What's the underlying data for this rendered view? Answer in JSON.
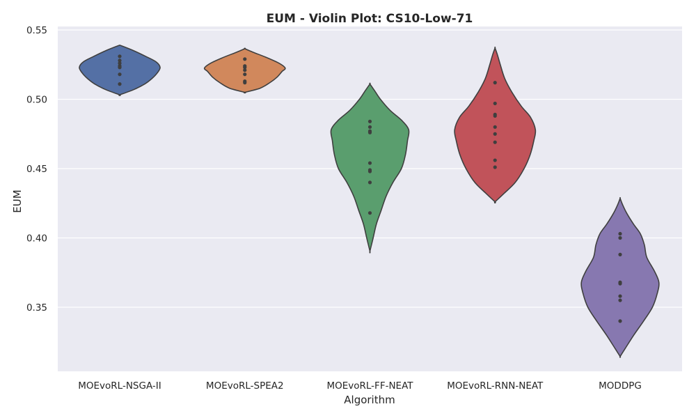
{
  "chart_data": {
    "type": "violin",
    "title": "EUM - Violin Plot: CS10-Low-71",
    "xlabel": "Algorithm",
    "ylabel": "EUM",
    "ylim": [
      0.305,
      0.55
    ],
    "yticks": [
      "0.35",
      "0.40",
      "0.45",
      "0.50",
      "0.55"
    ],
    "grid": true,
    "categories": [
      "MOEvoRL-NSGA-II",
      "MOEvoRL-SPEA2",
      "MOEvoRL-FF-NEAT",
      "MOEvoRL-RNN-NEAT",
      "MODDPG"
    ],
    "series": [
      {
        "category": "MOEvoRL-NSGA-II",
        "color": "#5470a5",
        "points": [
          0.531,
          0.528,
          0.526,
          0.524,
          0.523,
          0.518,
          0.511
        ],
        "density": [
          [
            0.5032,
            0.0
          ],
          [
            0.507,
            0.35
          ],
          [
            0.511,
            0.62
          ],
          [
            0.515,
            0.8
          ],
          [
            0.519,
            0.93
          ],
          [
            0.523,
            1.0
          ],
          [
            0.527,
            0.9
          ],
          [
            0.531,
            0.64
          ],
          [
            0.535,
            0.35
          ],
          [
            0.5385,
            0.05
          ],
          [
            0.539,
            0.0
          ]
        ]
      },
      {
        "category": "MOEvoRL-SPEA2",
        "color": "#d1885c",
        "points": [
          0.529,
          0.524,
          0.523,
          0.521,
          0.518,
          0.513,
          0.512
        ],
        "density": [
          [
            0.505,
            0.0
          ],
          [
            0.508,
            0.38
          ],
          [
            0.512,
            0.62
          ],
          [
            0.516,
            0.8
          ],
          [
            0.52,
            0.92
          ],
          [
            0.5225,
            1.0
          ],
          [
            0.526,
            0.85
          ],
          [
            0.53,
            0.55
          ],
          [
            0.534,
            0.2
          ],
          [
            0.5365,
            0.0
          ]
        ]
      },
      {
        "category": "MOEvoRL-FF-NEAT",
        "color": "#5a9e6e",
        "points": [
          0.484,
          0.48,
          0.477,
          0.476,
          0.454,
          0.449,
          0.448,
          0.44,
          0.418
        ],
        "density": [
          [
            0.3905,
            0.0
          ],
          [
            0.4,
            0.08
          ],
          [
            0.41,
            0.16
          ],
          [
            0.42,
            0.28
          ],
          [
            0.43,
            0.4
          ],
          [
            0.44,
            0.57
          ],
          [
            0.45,
            0.78
          ],
          [
            0.46,
            0.88
          ],
          [
            0.47,
            0.93
          ],
          [
            0.478,
            0.96
          ],
          [
            0.485,
            0.78
          ],
          [
            0.492,
            0.5
          ],
          [
            0.5,
            0.26
          ],
          [
            0.506,
            0.12
          ],
          [
            0.511,
            0.0
          ]
        ]
      },
      {
        "category": "MOEvoRL-RNN-NEAT",
        "color": "#c1535a",
        "points": [
          0.512,
          0.497,
          0.489,
          0.488,
          0.48,
          0.475,
          0.469,
          0.456,
          0.451
        ],
        "density": [
          [
            0.426,
            0.0
          ],
          [
            0.432,
            0.22
          ],
          [
            0.44,
            0.5
          ],
          [
            0.45,
            0.72
          ],
          [
            0.46,
            0.87
          ],
          [
            0.47,
            0.96
          ],
          [
            0.478,
            1.0
          ],
          [
            0.487,
            0.88
          ],
          [
            0.495,
            0.65
          ],
          [
            0.505,
            0.42
          ],
          [
            0.515,
            0.24
          ],
          [
            0.525,
            0.13
          ],
          [
            0.532,
            0.06
          ],
          [
            0.537,
            0.0
          ]
        ]
      },
      {
        "category": "MODDPG",
        "color": "#8778b0",
        "points": [
          0.403,
          0.4,
          0.388,
          0.368,
          0.367,
          0.358,
          0.355,
          0.34
        ],
        "density": [
          [
            0.3145,
            0.0
          ],
          [
            0.32,
            0.12
          ],
          [
            0.33,
            0.34
          ],
          [
            0.34,
            0.58
          ],
          [
            0.35,
            0.8
          ],
          [
            0.36,
            0.92
          ],
          [
            0.368,
            0.96
          ],
          [
            0.376,
            0.85
          ],
          [
            0.386,
            0.66
          ],
          [
            0.395,
            0.6
          ],
          [
            0.403,
            0.5
          ],
          [
            0.41,
            0.33
          ],
          [
            0.418,
            0.16
          ],
          [
            0.424,
            0.06
          ],
          [
            0.4285,
            0.0
          ]
        ]
      }
    ]
  }
}
